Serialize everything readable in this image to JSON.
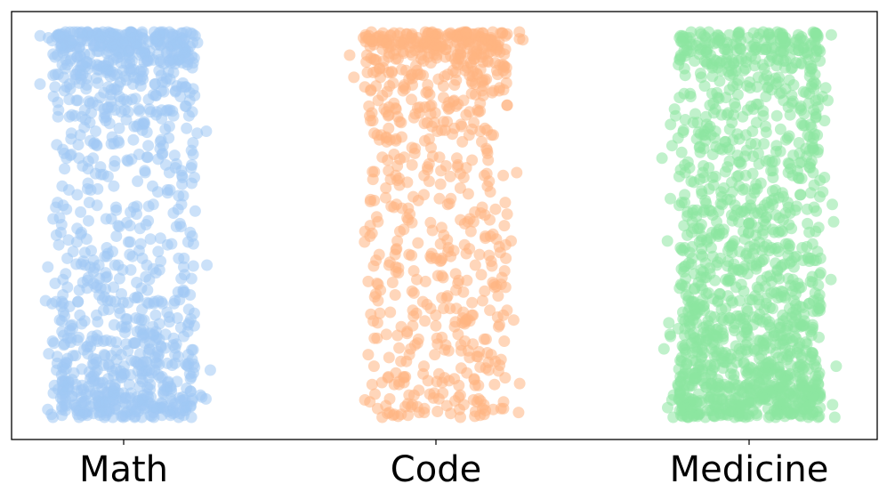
{
  "chart_data": {
    "type": "scatter",
    "title": "",
    "xlabel": "",
    "ylabel": "",
    "categories": [
      "Math",
      "Code",
      "Medicine"
    ],
    "ylim": [
      0,
      1
    ],
    "yticks_visible": false,
    "grid": false,
    "legend": "none",
    "marker_alpha": 0.55,
    "series": [
      {
        "category": "Math",
        "color": "#a1c9f4",
        "count": 1100,
        "jitter_range": [
          -0.36,
          0.36
        ],
        "density_profile": [
          [
            0.0,
            6.0
          ],
          [
            0.03,
            5.0
          ],
          [
            0.08,
            3.0
          ],
          [
            0.15,
            2.4
          ],
          [
            0.25,
            2.0
          ],
          [
            0.35,
            1.3
          ],
          [
            0.45,
            1.0
          ],
          [
            0.55,
            1.0
          ],
          [
            0.65,
            0.9
          ],
          [
            0.75,
            1.0
          ],
          [
            0.85,
            1.6
          ],
          [
            0.91,
            3.0
          ],
          [
            0.96,
            5.0
          ],
          [
            1.0,
            8.0
          ]
        ]
      },
      {
        "category": "Code",
        "color": "#ffb482",
        "count": 750,
        "jitter_range": [
          -0.36,
          0.36
        ],
        "density_profile": [
          [
            0.0,
            1.6
          ],
          [
            0.05,
            1.5
          ],
          [
            0.15,
            1.1
          ],
          [
            0.3,
            0.9
          ],
          [
            0.45,
            0.8
          ],
          [
            0.55,
            0.8
          ],
          [
            0.65,
            0.9
          ],
          [
            0.75,
            1.0
          ],
          [
            0.85,
            1.5
          ],
          [
            0.92,
            2.8
          ],
          [
            0.97,
            5.0
          ],
          [
            1.0,
            10.0
          ]
        ]
      },
      {
        "category": "Medicine",
        "color": "#8de5a1",
        "count": 1400,
        "jitter_range": [
          -0.36,
          0.36
        ],
        "density_profile": [
          [
            0.0,
            6.0
          ],
          [
            0.04,
            5.0
          ],
          [
            0.1,
            4.0
          ],
          [
            0.2,
            3.0
          ],
          [
            0.3,
            2.0
          ],
          [
            0.4,
            1.6
          ],
          [
            0.5,
            1.6
          ],
          [
            0.6,
            1.5
          ],
          [
            0.7,
            1.3
          ],
          [
            0.8,
            1.1
          ],
          [
            0.9,
            1.5
          ],
          [
            0.96,
            3.0
          ],
          [
            1.0,
            5.0
          ]
        ]
      }
    ]
  }
}
